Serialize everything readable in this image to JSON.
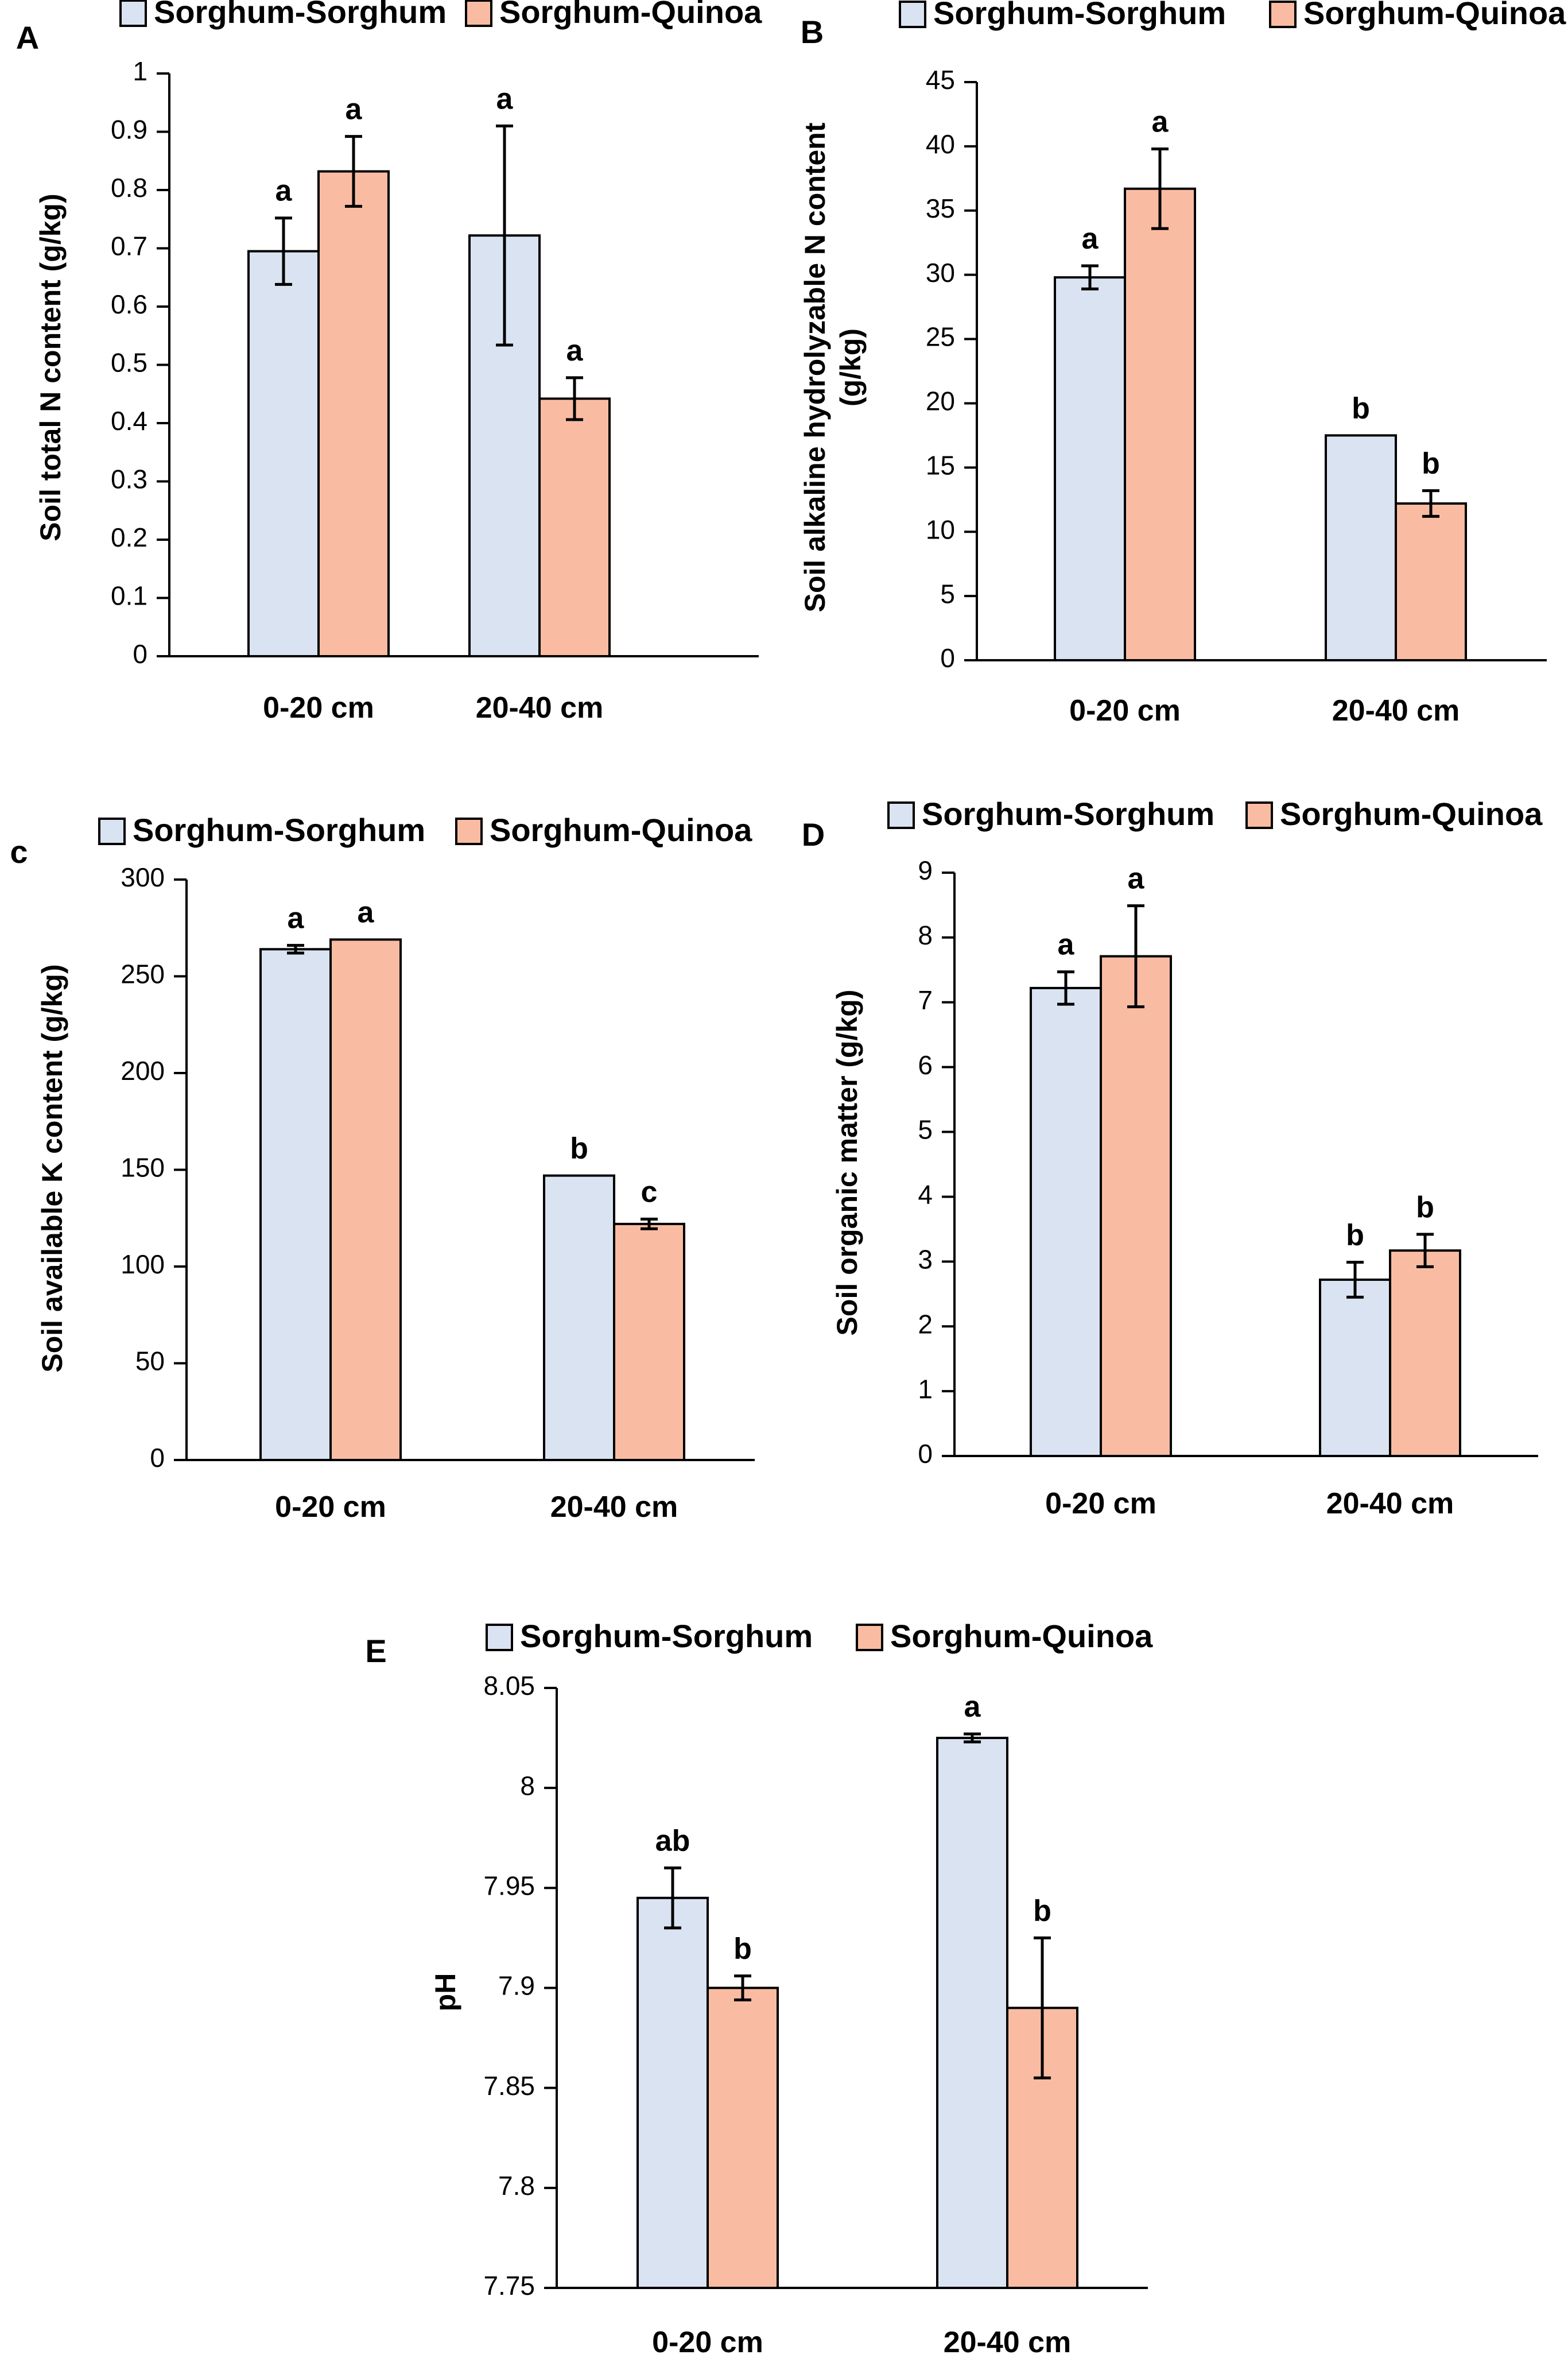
{
  "colors": {
    "series1": "#dae3f1",
    "series2": "#f9bca2",
    "stroke": "#000000"
  },
  "chart_data": [
    {
      "panel": "A",
      "type": "bar",
      "categories": [
        "0-20 cm",
        "20-40 cm"
      ],
      "ylabel": [
        "Soil total N content (g/kg)"
      ],
      "ylim": [
        0,
        1
      ],
      "yticks": [
        "0",
        "0.1",
        "0.2",
        "0.3",
        "0.4",
        "0.5",
        "0.6",
        "0.7",
        "0.8",
        "0.9",
        "1"
      ],
      "legend": [
        "Sorghum-Sorghum",
        "Sorghum-Quinoa"
      ],
      "series": [
        {
          "name": "Sorghum-Sorghum",
          "values": [
            0.695,
            0.722
          ],
          "errors": [
            0.057,
            0.188
          ],
          "letters": [
            "a",
            "a"
          ]
        },
        {
          "name": "Sorghum-Quinoa",
          "values": [
            0.832,
            0.442
          ],
          "errors": [
            0.06,
            0.036
          ],
          "letters": [
            "a",
            "a"
          ]
        }
      ]
    },
    {
      "panel": "B",
      "type": "bar",
      "categories": [
        "0-20 cm",
        "20-40 cm"
      ],
      "ylabel": [
        "Soil alkaline hydrolyzable N content",
        "(g/kg)"
      ],
      "ylim": [
        0,
        45
      ],
      "yticks": [
        "0",
        "5",
        "10",
        "15",
        "20",
        "25",
        "30",
        "35",
        "40",
        "45"
      ],
      "legend": [
        "Sorghum-Sorghum",
        "Sorghum-Quinoa"
      ],
      "series": [
        {
          "name": "Sorghum-Sorghum",
          "values": [
            29.8,
            17.5
          ],
          "errors": [
            0.9,
            0
          ],
          "letters": [
            "a",
            "b"
          ]
        },
        {
          "name": "Sorghum-Quinoa",
          "values": [
            36.7,
            12.2
          ],
          "errors": [
            3.1,
            1.0
          ],
          "letters": [
            "a",
            "b"
          ]
        }
      ]
    },
    {
      "panel": "c",
      "type": "bar",
      "categories": [
        "0-20 cm",
        "20-40 cm"
      ],
      "ylabel": [
        "Soil available K content (g/kg)"
      ],
      "ylim": [
        0,
        300
      ],
      "yticks": [
        "0",
        "50",
        "100",
        "150",
        "200",
        "250",
        "300"
      ],
      "legend": [
        "Sorghum-Sorghum",
        "Sorghum-Quinoa"
      ],
      "series": [
        {
          "name": "Sorghum-Sorghum",
          "values": [
            264,
            147
          ],
          "errors": [
            2,
            0
          ],
          "letters": [
            "a",
            "b"
          ]
        },
        {
          "name": "Sorghum-Quinoa",
          "values": [
            269,
            122
          ],
          "errors": [
            0,
            2.5
          ],
          "letters": [
            "a",
            "c"
          ]
        }
      ]
    },
    {
      "panel": "D",
      "type": "bar",
      "categories": [
        "0-20 cm",
        "20-40 cm"
      ],
      "ylabel": [
        "Soil organic matter (g/kg)"
      ],
      "ylim": [
        0,
        9
      ],
      "yticks": [
        "0",
        "1",
        "2",
        "3",
        "4",
        "5",
        "6",
        "7",
        "8",
        "9"
      ],
      "legend": [
        "Sorghum-Sorghum",
        "Sorghum-Quinoa"
      ],
      "series": [
        {
          "name": "Sorghum-Sorghum",
          "values": [
            7.22,
            2.72
          ],
          "errors": [
            0.25,
            0.27
          ],
          "letters": [
            "a",
            "b"
          ]
        },
        {
          "name": "Sorghum-Quinoa",
          "values": [
            7.71,
            3.17
          ],
          "errors": [
            0.78,
            0.25
          ],
          "letters": [
            "a",
            "b"
          ]
        }
      ]
    },
    {
      "panel": "E",
      "type": "bar",
      "categories": [
        "0-20 cm",
        "20-40 cm"
      ],
      "ylabel": [
        "pH"
      ],
      "ylim": [
        7.75,
        8.05
      ],
      "yticks": [
        "7.75",
        "7.8",
        "7.85",
        "7.9",
        "7.95",
        "8",
        "8.05"
      ],
      "legend": [
        "Sorghum-Sorghum",
        "Sorghum-Quinoa"
      ],
      "series": [
        {
          "name": "Sorghum-Sorghum",
          "values": [
            7.945,
            8.025
          ],
          "errors": [
            0.015,
            0.002
          ],
          "letters": [
            "ab",
            "a"
          ]
        },
        {
          "name": "Sorghum-Quinoa",
          "values": [
            7.9,
            7.89
          ],
          "errors": [
            0.006,
            0.035
          ],
          "letters": [
            "b",
            "b"
          ]
        }
      ]
    }
  ]
}
